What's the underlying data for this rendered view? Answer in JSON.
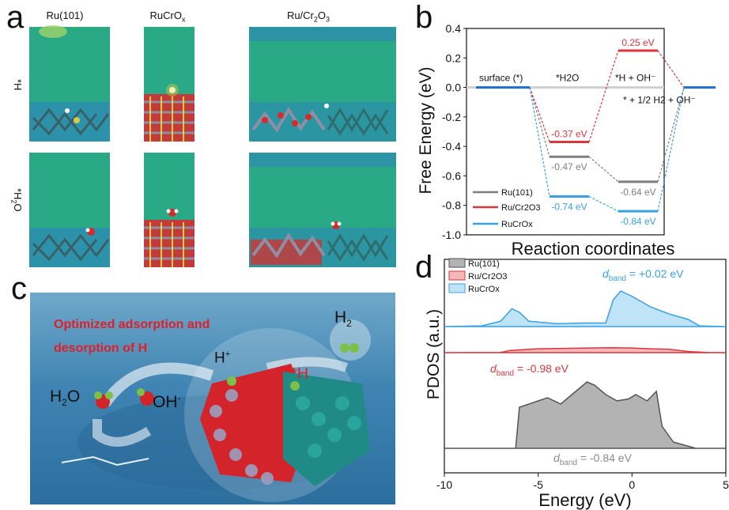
{
  "panel_a": {
    "letter": "a",
    "columns": [
      "Ru(101)",
      "RuCrOx",
      "Ru/Cr2O3"
    ],
    "rows": [
      "*H",
      "*H2O"
    ]
  },
  "panel_b": {
    "letter": "b",
    "xlabel": "Reaction coordinates",
    "ylabel": "Free Energy (eV)",
    "ylim": [
      -1.0,
      0.4
    ],
    "yticks": [
      "0.4",
      "0.2",
      "0.0",
      "-0.2",
      "-0.4",
      "-0.6",
      "-0.8",
      "-1.0"
    ],
    "step_labels": [
      "surface (*)",
      "*H2O",
      "*H + OH⁻",
      "* + 1/2 H2 + OH⁻"
    ],
    "legend": [
      "Ru(101)",
      "Ru/Cr2O3",
      "RuCrOx"
    ],
    "energy_labels": {
      "ru_h2o": "-0.47 eV",
      "ru_h": "-0.64 eV",
      "rucr_h2o": "-0.37 eV",
      "rucr_h": "0.25 eV",
      "rucrox_h2o": "-0.74 eV",
      "rucrox_h": "-0.84 eV"
    }
  },
  "panel_c": {
    "letter": "c",
    "headline_1": "Optimized adsorption and",
    "headline_2": "desorption of H",
    "label_h2o": "H2O",
    "label_ohm": "OH-",
    "label_hplus": "H+",
    "label_star_h": "*H",
    "label_h2": "H2"
  },
  "panel_d": {
    "letter": "d",
    "xlabel": "Energy (eV)",
    "ylabel": "PDOS (a.u.)",
    "xticks": [
      "-10",
      "-5",
      "0",
      "5"
    ],
    "legend": [
      "Ru(101)",
      "Ru/Cr2O3",
      "RuCrOx"
    ],
    "dband_rucrox": "= +0.02 eV",
    "dband_rucr": "= -0.98 eV",
    "dband_ru": "= -0.84 eV"
  },
  "colors": {
    "ru101": "#7f7f7f",
    "rucr2o3": "#d9363e",
    "rucrox": "#3aa0e0",
    "surface": "#1f6fd1"
  },
  "chart_data": [
    {
      "type": "line",
      "title": "",
      "xlabel": "Reaction coordinates",
      "ylabel": "Free Energy (eV)",
      "ylim": [
        -1.0,
        0.4
      ],
      "categories": [
        "surface (*)",
        "*H2O",
        "*H + OH⁻",
        "* + 1/2 H2 + OH⁻"
      ],
      "series": [
        {
          "name": "Ru(101)",
          "values": [
            0.0,
            -0.47,
            -0.64,
            0.0
          ]
        },
        {
          "name": "Ru/Cr2O3",
          "values": [
            0.0,
            -0.37,
            0.25,
            0.0
          ]
        },
        {
          "name": "RuCrOx",
          "values": [
            0.0,
            -0.74,
            -0.84,
            0.0
          ]
        }
      ],
      "legend": "bottom-left"
    },
    {
      "type": "area",
      "xlabel": "Energy (eV)",
      "ylabel": "PDOS (a.u.)",
      "xlim": [
        -10,
        5
      ],
      "series": [
        {
          "name": "Ru(101)",
          "d_band_center": -0.84
        },
        {
          "name": "Ru/Cr2O3",
          "d_band_center": -0.98
        },
        {
          "name": "RuCrOx",
          "d_band_center": 0.02
        }
      ],
      "legend": "top-left"
    }
  ]
}
